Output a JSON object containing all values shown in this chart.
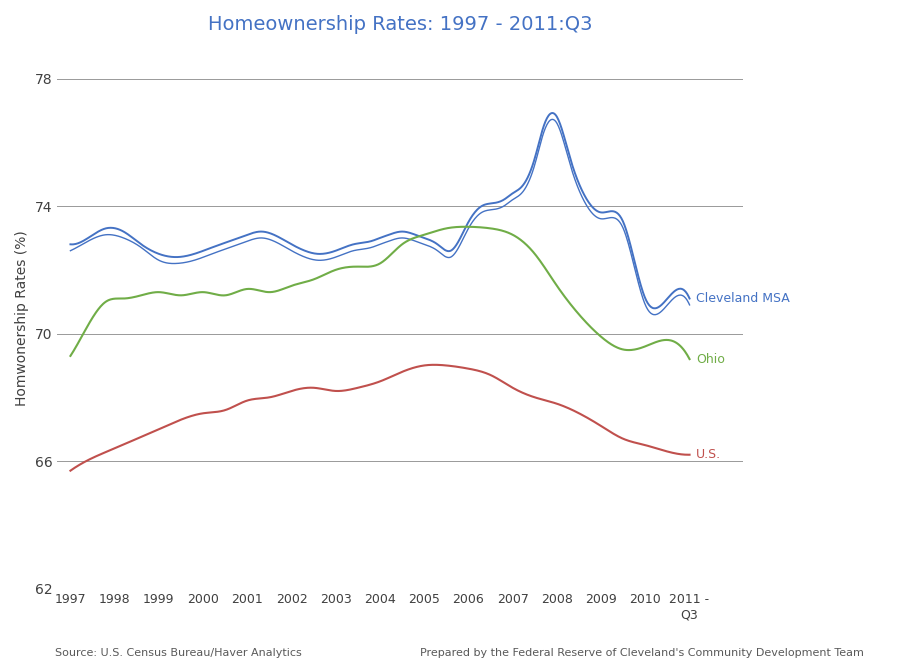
{
  "title": "Homeownership Rates: 1997 - 2011:Q3",
  "title_color": "#4472C4",
  "ylabel": "Homwonership Rates (%)",
  "ylabel_color": "#404040",
  "ylim": [
    62,
    79
  ],
  "yticks": [
    62,
    66,
    70,
    74,
    78
  ],
  "background_color": "#FFFFFF",
  "grid_color": "#999999",
  "source_left": "Source: U.S. Census Bureau/Haver Analytics",
  "source_right": "Prepared by the Federal Reserve of Cleveland's Community Development Team",
  "x_labels": [
    "1997",
    "1998",
    "1999",
    "2000",
    "2001",
    "2002",
    "2003",
    "2004",
    "2005",
    "2006",
    "2007",
    "2008",
    "2009",
    "2010",
    "2011 -\nQ3"
  ],
  "cleveland_msa": {
    "label": "Cleveland MSA",
    "color": "#4472C4",
    "x": [
      0,
      0.4,
      0.8,
      1.2,
      1.6,
      2.0,
      2.4,
      2.8,
      3.2,
      3.6,
      4.0,
      4.3,
      4.6,
      5.0,
      5.3,
      5.6,
      6.0,
      6.4,
      6.8,
      7.0,
      7.2,
      7.5,
      7.8,
      8.0,
      8.3,
      8.6,
      9.0,
      9.3,
      9.6,
      9.8,
      10.0,
      10.2,
      10.5,
      10.7,
      11.0,
      11.3,
      11.6,
      12.0,
      12.5,
      13.0,
      13.5,
      14.0
    ],
    "y": [
      72.8,
      73.0,
      73.3,
      73.2,
      72.8,
      72.5,
      72.4,
      72.5,
      72.7,
      72.9,
      73.1,
      73.2,
      73.1,
      72.8,
      72.6,
      72.5,
      72.6,
      72.8,
      72.9,
      73.0,
      73.1,
      73.2,
      73.1,
      73.0,
      72.8,
      72.6,
      73.5,
      74.0,
      74.1,
      74.2,
      74.4,
      74.6,
      75.5,
      76.5,
      76.8,
      75.5,
      74.4,
      73.8,
      73.5,
      71.1,
      71.1,
      71.1
    ]
  },
  "cleveland_msa2": {
    "color": "#4472C4",
    "x": [
      0,
      0.4,
      0.8,
      1.2,
      1.6,
      2.0,
      2.4,
      2.8,
      3.2,
      3.6,
      4.0,
      4.3,
      4.6,
      5.0,
      5.3,
      5.6,
      6.0,
      6.4,
      6.8,
      7.0,
      7.2,
      7.5,
      7.8,
      8.0,
      8.3,
      8.6,
      9.0,
      9.3,
      9.6,
      9.8,
      10.0,
      10.2,
      10.5,
      10.7,
      11.0,
      11.3,
      11.6,
      12.0,
      12.5,
      13.0,
      13.5,
      14.0
    ],
    "y": [
      72.6,
      72.9,
      73.1,
      73.0,
      72.7,
      72.3,
      72.2,
      72.3,
      72.5,
      72.7,
      72.9,
      73.0,
      72.9,
      72.6,
      72.4,
      72.3,
      72.4,
      72.6,
      72.7,
      72.8,
      72.9,
      73.0,
      72.9,
      72.8,
      72.6,
      72.4,
      73.3,
      73.8,
      73.9,
      74.0,
      74.2,
      74.4,
      75.3,
      76.3,
      76.6,
      75.3,
      74.2,
      73.6,
      73.3,
      70.9,
      70.9,
      70.9
    ]
  },
  "ohio": {
    "label": "Ohio",
    "color": "#70AD47",
    "x": [
      0,
      0.5,
      0.8,
      1.2,
      1.6,
      2.0,
      2.5,
      3.0,
      3.5,
      4.0,
      4.5,
      5.0,
      5.5,
      6.0,
      6.5,
      7.0,
      7.5,
      8.0,
      8.5,
      9.0,
      9.5,
      10.0,
      10.5,
      11.0,
      11.5,
      12.0,
      12.5,
      13.0,
      13.5,
      14.0
    ],
    "y": [
      69.3,
      70.5,
      71.0,
      71.1,
      71.2,
      71.3,
      71.2,
      71.3,
      71.2,
      71.4,
      71.3,
      71.5,
      71.7,
      72.0,
      72.1,
      72.2,
      72.8,
      73.1,
      73.3,
      73.35,
      73.3,
      73.1,
      72.5,
      71.5,
      70.6,
      69.9,
      69.5,
      69.6,
      69.8,
      69.2
    ]
  },
  "us": {
    "label": "U.S.",
    "color": "#C0504D",
    "x": [
      0,
      0.5,
      1.0,
      1.5,
      2.0,
      2.5,
      3.0,
      3.5,
      4.0,
      4.5,
      5.0,
      5.5,
      6.0,
      6.5,
      7.0,
      7.5,
      8.0,
      8.5,
      9.0,
      9.5,
      10.0,
      10.5,
      11.0,
      11.5,
      12.0,
      12.5,
      13.0,
      13.5,
      14.0
    ],
    "y": [
      65.7,
      66.1,
      66.4,
      66.7,
      67.0,
      67.3,
      67.5,
      67.6,
      67.9,
      68.0,
      68.2,
      68.3,
      68.2,
      68.3,
      68.5,
      68.8,
      69.0,
      69.0,
      68.9,
      68.7,
      68.3,
      68.0,
      67.8,
      67.5,
      67.1,
      66.7,
      66.5,
      66.3,
      66.2
    ]
  }
}
